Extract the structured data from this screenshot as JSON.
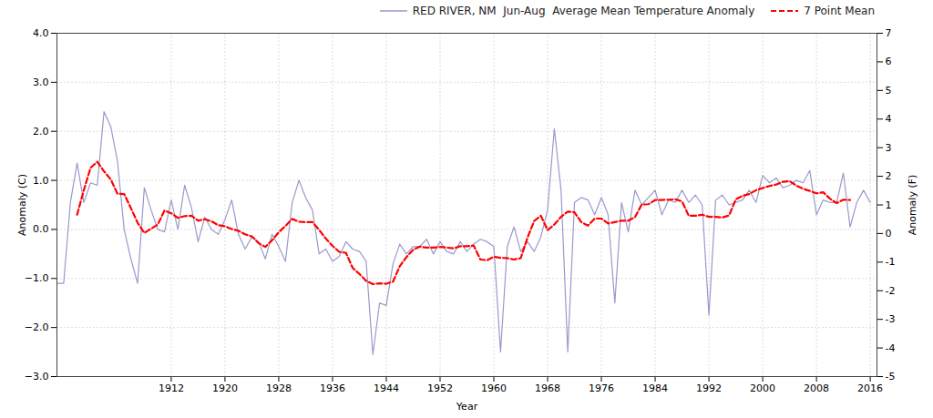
{
  "chart_data": {
    "type": "line",
    "xlabel": "Year",
    "ylabel": "Anomaly (C)",
    "y2label": "Anomaly (F)",
    "x": [
      1895,
      1896,
      1897,
      1898,
      1899,
      1900,
      1901,
      1902,
      1903,
      1904,
      1905,
      1906,
      1907,
      1908,
      1909,
      1910,
      1911,
      1912,
      1913,
      1914,
      1915,
      1916,
      1917,
      1918,
      1919,
      1920,
      1921,
      1922,
      1923,
      1924,
      1925,
      1926,
      1927,
      1928,
      1929,
      1930,
      1931,
      1932,
      1933,
      1934,
      1935,
      1936,
      1937,
      1938,
      1939,
      1940,
      1941,
      1942,
      1943,
      1944,
      1945,
      1946,
      1947,
      1948,
      1949,
      1950,
      1951,
      1952,
      1953,
      1954,
      1955,
      1956,
      1957,
      1958,
      1959,
      1960,
      1961,
      1962,
      1963,
      1964,
      1965,
      1966,
      1967,
      1968,
      1969,
      1970,
      1971,
      1972,
      1973,
      1974,
      1975,
      1976,
      1977,
      1978,
      1979,
      1980,
      1981,
      1982,
      1983,
      1984,
      1985,
      1986,
      1987,
      1988,
      1989,
      1990,
      1991,
      1992,
      1993,
      1994,
      1995,
      1996,
      1997,
      1998,
      1999,
      2000,
      2001,
      2002,
      2003,
      2004,
      2005,
      2006,
      2007,
      2008,
      2009,
      2010,
      2011,
      2012,
      2013,
      2014,
      2015,
      2016
    ],
    "series": [
      {
        "name": "RED RIVER, NM  Jun-Aug  Average Mean Temperature Anomaly",
        "color": "#9999cc",
        "line_style": "solid",
        "values": [
          -1.1,
          -1.1,
          0.55,
          1.35,
          0.55,
          0.95,
          0.9,
          2.4,
          2.1,
          1.4,
          0.0,
          -0.6,
          -1.1,
          0.85,
          0.4,
          0.0,
          -0.05,
          0.6,
          0.0,
          0.9,
          0.45,
          -0.25,
          0.25,
          0.0,
          -0.1,
          0.2,
          0.6,
          -0.1,
          -0.4,
          -0.15,
          -0.25,
          -0.6,
          -0.1,
          -0.35,
          -0.65,
          0.55,
          1.0,
          0.65,
          0.4,
          -0.5,
          -0.4,
          -0.65,
          -0.55,
          -0.25,
          -0.4,
          -0.45,
          -0.65,
          -2.55,
          -1.5,
          -1.55,
          -0.7,
          -0.3,
          -0.5,
          -0.35,
          -0.35,
          -0.2,
          -0.5,
          -0.25,
          -0.45,
          -0.5,
          -0.25,
          -0.45,
          -0.3,
          -0.2,
          -0.25,
          -0.35,
          -2.5,
          -0.35,
          0.05,
          -0.45,
          -0.25,
          -0.45,
          -0.15,
          0.4,
          2.05,
          0.8,
          -2.5,
          0.55,
          0.65,
          0.6,
          0.3,
          0.65,
          0.3,
          -1.5,
          0.55,
          -0.05,
          0.8,
          0.5,
          0.65,
          0.8,
          0.3,
          0.6,
          0.55,
          0.8,
          0.55,
          0.7,
          0.5,
          -1.75,
          0.6,
          0.7,
          0.5,
          0.55,
          0.6,
          0.8,
          0.55,
          1.1,
          0.95,
          1.05,
          0.85,
          0.9,
          1.0,
          0.95,
          1.2,
          0.3,
          0.6,
          0.55,
          0.55,
          1.15,
          0.05,
          0.55,
          0.8,
          0.55
        ]
      },
      {
        "name": "7 Point Mean",
        "color": "#ff0000",
        "line_style": "dashed",
        "values": [
          null,
          null,
          null,
          0.3,
          0.8,
          1.257142857,
          1.378571429,
          1.185714286,
          1.021428571,
          0.728571429,
          0.721428571,
          0.435714286,
          0.135714286,
          -0.071428571,
          0.014285714,
          0.1,
          0.385714286,
          0.328571429,
          0.235714286,
          0.271428571,
          0.278571429,
          0.178571429,
          0.207142857,
          0.164285714,
          0.085714286,
          0.064285714,
          0.007142857,
          -0.028571429,
          -0.1,
          -0.142857143,
          -0.278571429,
          -0.357142857,
          -0.221428571,
          -0.057142857,
          0.071428571,
          0.214285714,
          0.157142857,
          0.15,
          0.15,
          -0.007142857,
          -0.185714286,
          -0.335714286,
          -0.457142857,
          -0.478571429,
          -0.785714286,
          -0.907142857,
          -1.05,
          -1.114285714,
          -1.1,
          -1.107142857,
          -1.064285714,
          -0.75,
          -0.564285714,
          -0.414285714,
          -0.35,
          -0.371428571,
          -0.371428571,
          -0.357142857,
          -0.371428571,
          -0.385714286,
          -0.342857143,
          -0.342857143,
          -0.328571429,
          -0.614285714,
          -0.628571429,
          -0.557142857,
          -0.578571429,
          -0.585714286,
          -0.614285714,
          -0.585714286,
          -0.171428571,
          0.171428571,
          0.278571429,
          -0.014285714,
          0.1,
          0.257142857,
          0.364285714,
          0.35,
          0.15,
          0.078571429,
          0.221428571,
          0.221428571,
          0.121428571,
          0.15,
          0.178571429,
          0.178571429,
          0.25,
          0.507142857,
          0.514285714,
          0.6,
          0.6,
          0.607142857,
          0.614285714,
          0.571428571,
          0.278571429,
          0.278571429,
          0.3,
          0.257142857,
          0.257142857,
          0.242857143,
          0.285714286,
          0.614285714,
          0.685714286,
          0.721428571,
          0.8,
          0.842857143,
          0.885714286,
          0.914285714,
          0.971428571,
          0.985714286,
          0.892857143,
          0.828571429,
          0.785714286,
          0.735714286,
          0.757142857,
          0.628571429,
          0.535714286,
          0.607142857,
          0.6,
          null,
          null,
          null
        ]
      }
    ],
    "xlim": [
      1895,
      2017
    ],
    "xticks": [
      1912,
      1920,
      1928,
      1936,
      1944,
      1952,
      1960,
      1968,
      1976,
      1984,
      1992,
      2000,
      2008,
      2016
    ],
    "ylim": [
      -3,
      4
    ],
    "yticks": [
      -3,
      -2,
      -1,
      0,
      1,
      2,
      3,
      4
    ],
    "y2lim": [
      -5,
      7
    ],
    "y2ticks": [
      -5,
      -4,
      -3,
      -2,
      -1,
      0,
      1,
      2,
      3,
      4,
      5,
      6,
      7
    ],
    "grid": true,
    "legend": "upper right"
  }
}
